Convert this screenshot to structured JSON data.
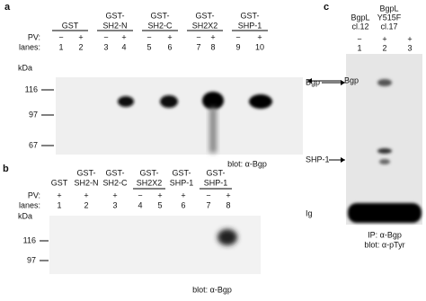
{
  "panel_a": {
    "label": "a",
    "groups": [
      [
        "GST"
      ],
      [
        "GST-",
        "SH2-N"
      ],
      [
        "GST-",
        "SH2-C"
      ],
      [
        "GST-",
        "SH2X2"
      ],
      [
        "GST-",
        "SHP-1"
      ]
    ],
    "pv_label": "PV:",
    "pv": [
      "−",
      "+",
      "−",
      "+",
      "−",
      "+",
      "−",
      "+",
      "−",
      "+"
    ],
    "lanes_label": "lanes:",
    "lanes": [
      "1",
      "2",
      "3",
      "4",
      "5",
      "6",
      "7",
      "8",
      "9",
      "10"
    ],
    "markers": [
      "kDa",
      "116",
      "97",
      "67"
    ],
    "band_label": "Bgp",
    "blot": "blot: α-Bgp"
  },
  "panel_b": {
    "label": "b",
    "groups": [
      [
        "GST"
      ],
      [
        "GST-",
        "SH2-N"
      ],
      [
        "GST-",
        "SH2-C"
      ],
      [
        "GST-",
        "SH2X2"
      ],
      [
        "GST-",
        "SHP-1"
      ],
      [
        "GST-",
        "SHP-1"
      ]
    ],
    "pv_label": "PV:",
    "pv": [
      "+",
      "+",
      "+",
      "−",
      "+",
      "+",
      "−",
      "+"
    ],
    "lanes_label": "lanes:",
    "lanes": [
      "1",
      "2",
      "3",
      "4",
      "5",
      "6",
      "7",
      "8"
    ],
    "markers": [
      "kDa",
      "116",
      "97"
    ],
    "blot": "blot: α-Bgp"
  },
  "panel_c": {
    "label": "c",
    "groups": [
      [
        "BgpL",
        "cl.12"
      ],
      [
        "BgpL",
        "Y515F",
        "cl.17"
      ]
    ],
    "pv": [
      "−",
      "+",
      "+"
    ],
    "lanes": [
      "1",
      "2",
      "3"
    ],
    "bands": [
      "Bgp",
      "SHP-1",
      "Ig"
    ],
    "ip": "IP: α-Bgp",
    "blot": "blot: α-pTyr"
  }
}
